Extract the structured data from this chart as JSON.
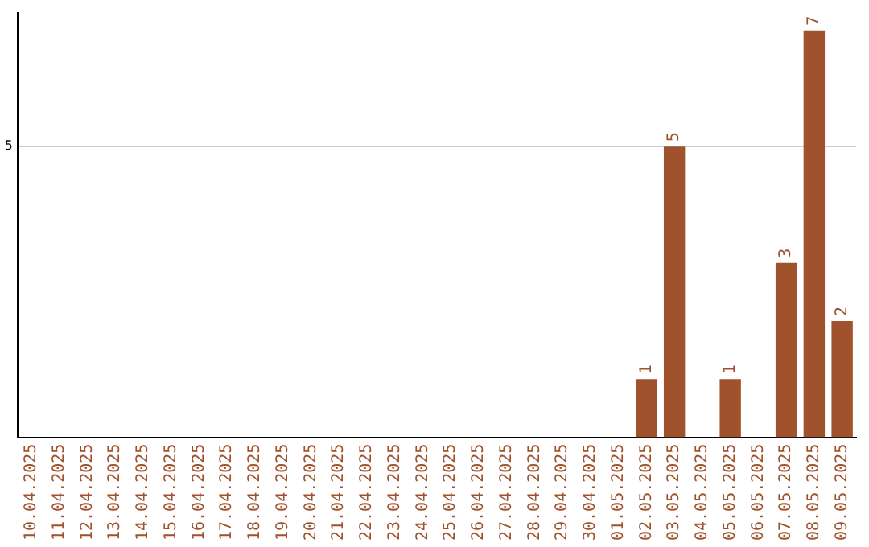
{
  "chart_data": {
    "type": "bar",
    "categories": [
      "10.04.2025",
      "11.04.2025",
      "12.04.2025",
      "13.04.2025",
      "14.04.2025",
      "15.04.2025",
      "16.04.2025",
      "17.04.2025",
      "18.04.2025",
      "19.04.2025",
      "20.04.2025",
      "21.04.2025",
      "22.04.2025",
      "23.04.2025",
      "24.04.2025",
      "25.04.2025",
      "26.04.2025",
      "27.04.2025",
      "28.04.2025",
      "29.04.2025",
      "30.04.2025",
      "01.05.2025",
      "02.05.2025",
      "03.05.2025",
      "04.05.2025",
      "05.05.2025",
      "06.05.2025",
      "07.05.2025",
      "08.05.2025",
      "09.05.2025"
    ],
    "values": [
      null,
      null,
      null,
      null,
      null,
      null,
      null,
      null,
      null,
      null,
      null,
      null,
      null,
      null,
      null,
      null,
      null,
      null,
      null,
      null,
      null,
      null,
      1,
      5,
      null,
      1,
      null,
      3,
      7,
      2
    ],
    "color": "#a0522d",
    "ylim": [
      0,
      7.3
    ],
    "yticks": [
      5
    ],
    "grid": "y",
    "data_labels": true,
    "legend": false
  }
}
